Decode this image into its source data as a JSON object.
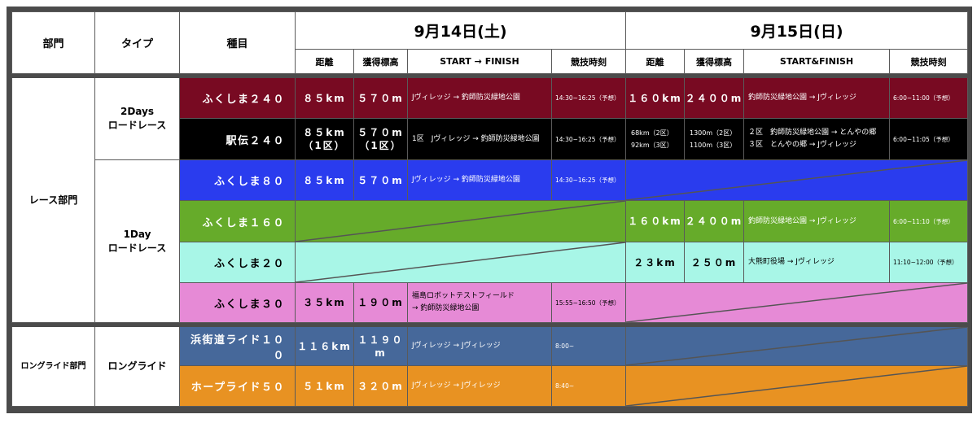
{
  "header": {
    "dept": "部門",
    "type": "タイプ",
    "event": "種目",
    "day1": {
      "date": "9月14日(土)",
      "cols": [
        "距離",
        "獲得標高",
        "START → FINISH",
        "競技時刻"
      ]
    },
    "day2": {
      "date": "9月15日(日)",
      "cols": [
        "距離",
        "獲得標高",
        "START&FINISH",
        "競技時刻"
      ]
    }
  },
  "departments": [
    {
      "label": "レース部門"
    },
    {
      "label": "ロングライド部門"
    }
  ],
  "types": [
    {
      "label": "2Days\nロードレース"
    },
    {
      "label": "1Day\nロードレース"
    },
    {
      "label": "ロングライド"
    }
  ],
  "rows": [
    {
      "event": "ふくしま２４０",
      "bg": "#780a22",
      "fg": "#ffffff",
      "day1": {
        "distance": "８５km",
        "elevation": "５７０m",
        "route": "Jヴィレッジ → 釣師防災緑地公園",
        "time": "14:30~16:25（予想）"
      },
      "day2": {
        "distance": "１６０km",
        "elevation": "２４００m",
        "route": "釣師防災緑地公園 → Jヴィレッジ",
        "time": "6:00~11:00（予想）"
      }
    },
    {
      "event": "駅伝２４０",
      "bg": "#000000",
      "fg": "#ffffff",
      "day1": {
        "distance": "８５km\n（1区）",
        "elevation": "５７０m\n（1区）",
        "route": "1区　Jヴィレッジ → 釣師防災緑地公園",
        "time": "14:30~16:25（予想）"
      },
      "day2": {
        "distance": "68km（2区）\n92km（3区）",
        "elevation": "1300m（2区）\n1100m（3区）",
        "route": "２区　釣師防災緑地公園 → とんやの郷\n３区　とんやの郷 → Jヴィレッジ",
        "time": "6:00~11:05（予想）",
        "small": true
      }
    },
    {
      "event": "ふくしま８０",
      "bg": "#2a3cee",
      "fg": "#ffffff",
      "day1": {
        "distance": "８５km",
        "elevation": "５７０m",
        "route": "Jヴィレッジ → 釣師防災緑地公園",
        "time": "14:30~16:25（予想）"
      },
      "day2": null
    },
    {
      "event": "ふくしま１６０",
      "bg": "#66ab2a",
      "fg": "#ffffff",
      "day1": null,
      "day2": {
        "distance": "１６０km",
        "elevation": "２４００m",
        "route": "釣師防災緑地公園 → Jヴィレッジ",
        "time": "6:00~11:10（予想）"
      }
    },
    {
      "event": "ふくしま２０",
      "bg": "#a8f6e7",
      "fg": "#000000",
      "day1": null,
      "day2": {
        "distance": "２３km",
        "elevation": "２５０m",
        "route": "大熊町役場 → Jヴィレッジ",
        "time": "11:10~12:00（予想）"
      }
    },
    {
      "event": "ふくしま３０",
      "bg": "#e68ad6",
      "fg": "#000000",
      "day1": {
        "distance": "３５km",
        "elevation": "１９０m",
        "route": "福島ロボットテストフィールド\n→ 釣師防災緑地公園",
        "time": "15:55~16:50（予想）"
      },
      "day2": null
    },
    {
      "event": "浜街道ライド１００",
      "bg": "#46689a",
      "fg": "#ffffff",
      "day1": {
        "distance": "１１６km",
        "elevation": "１１９０m",
        "route": "Jヴィレッジ → Jヴィレッジ",
        "time": "8:00~"
      },
      "day2": null
    },
    {
      "event": "ホープライド５０",
      "bg": "#e89222",
      "fg": "#ffffff",
      "day1": {
        "distance": "５１km",
        "elevation": "３２０m",
        "route": "Jヴィレッジ → Jヴィレッジ",
        "time": "8:40~"
      },
      "day2": null
    }
  ]
}
